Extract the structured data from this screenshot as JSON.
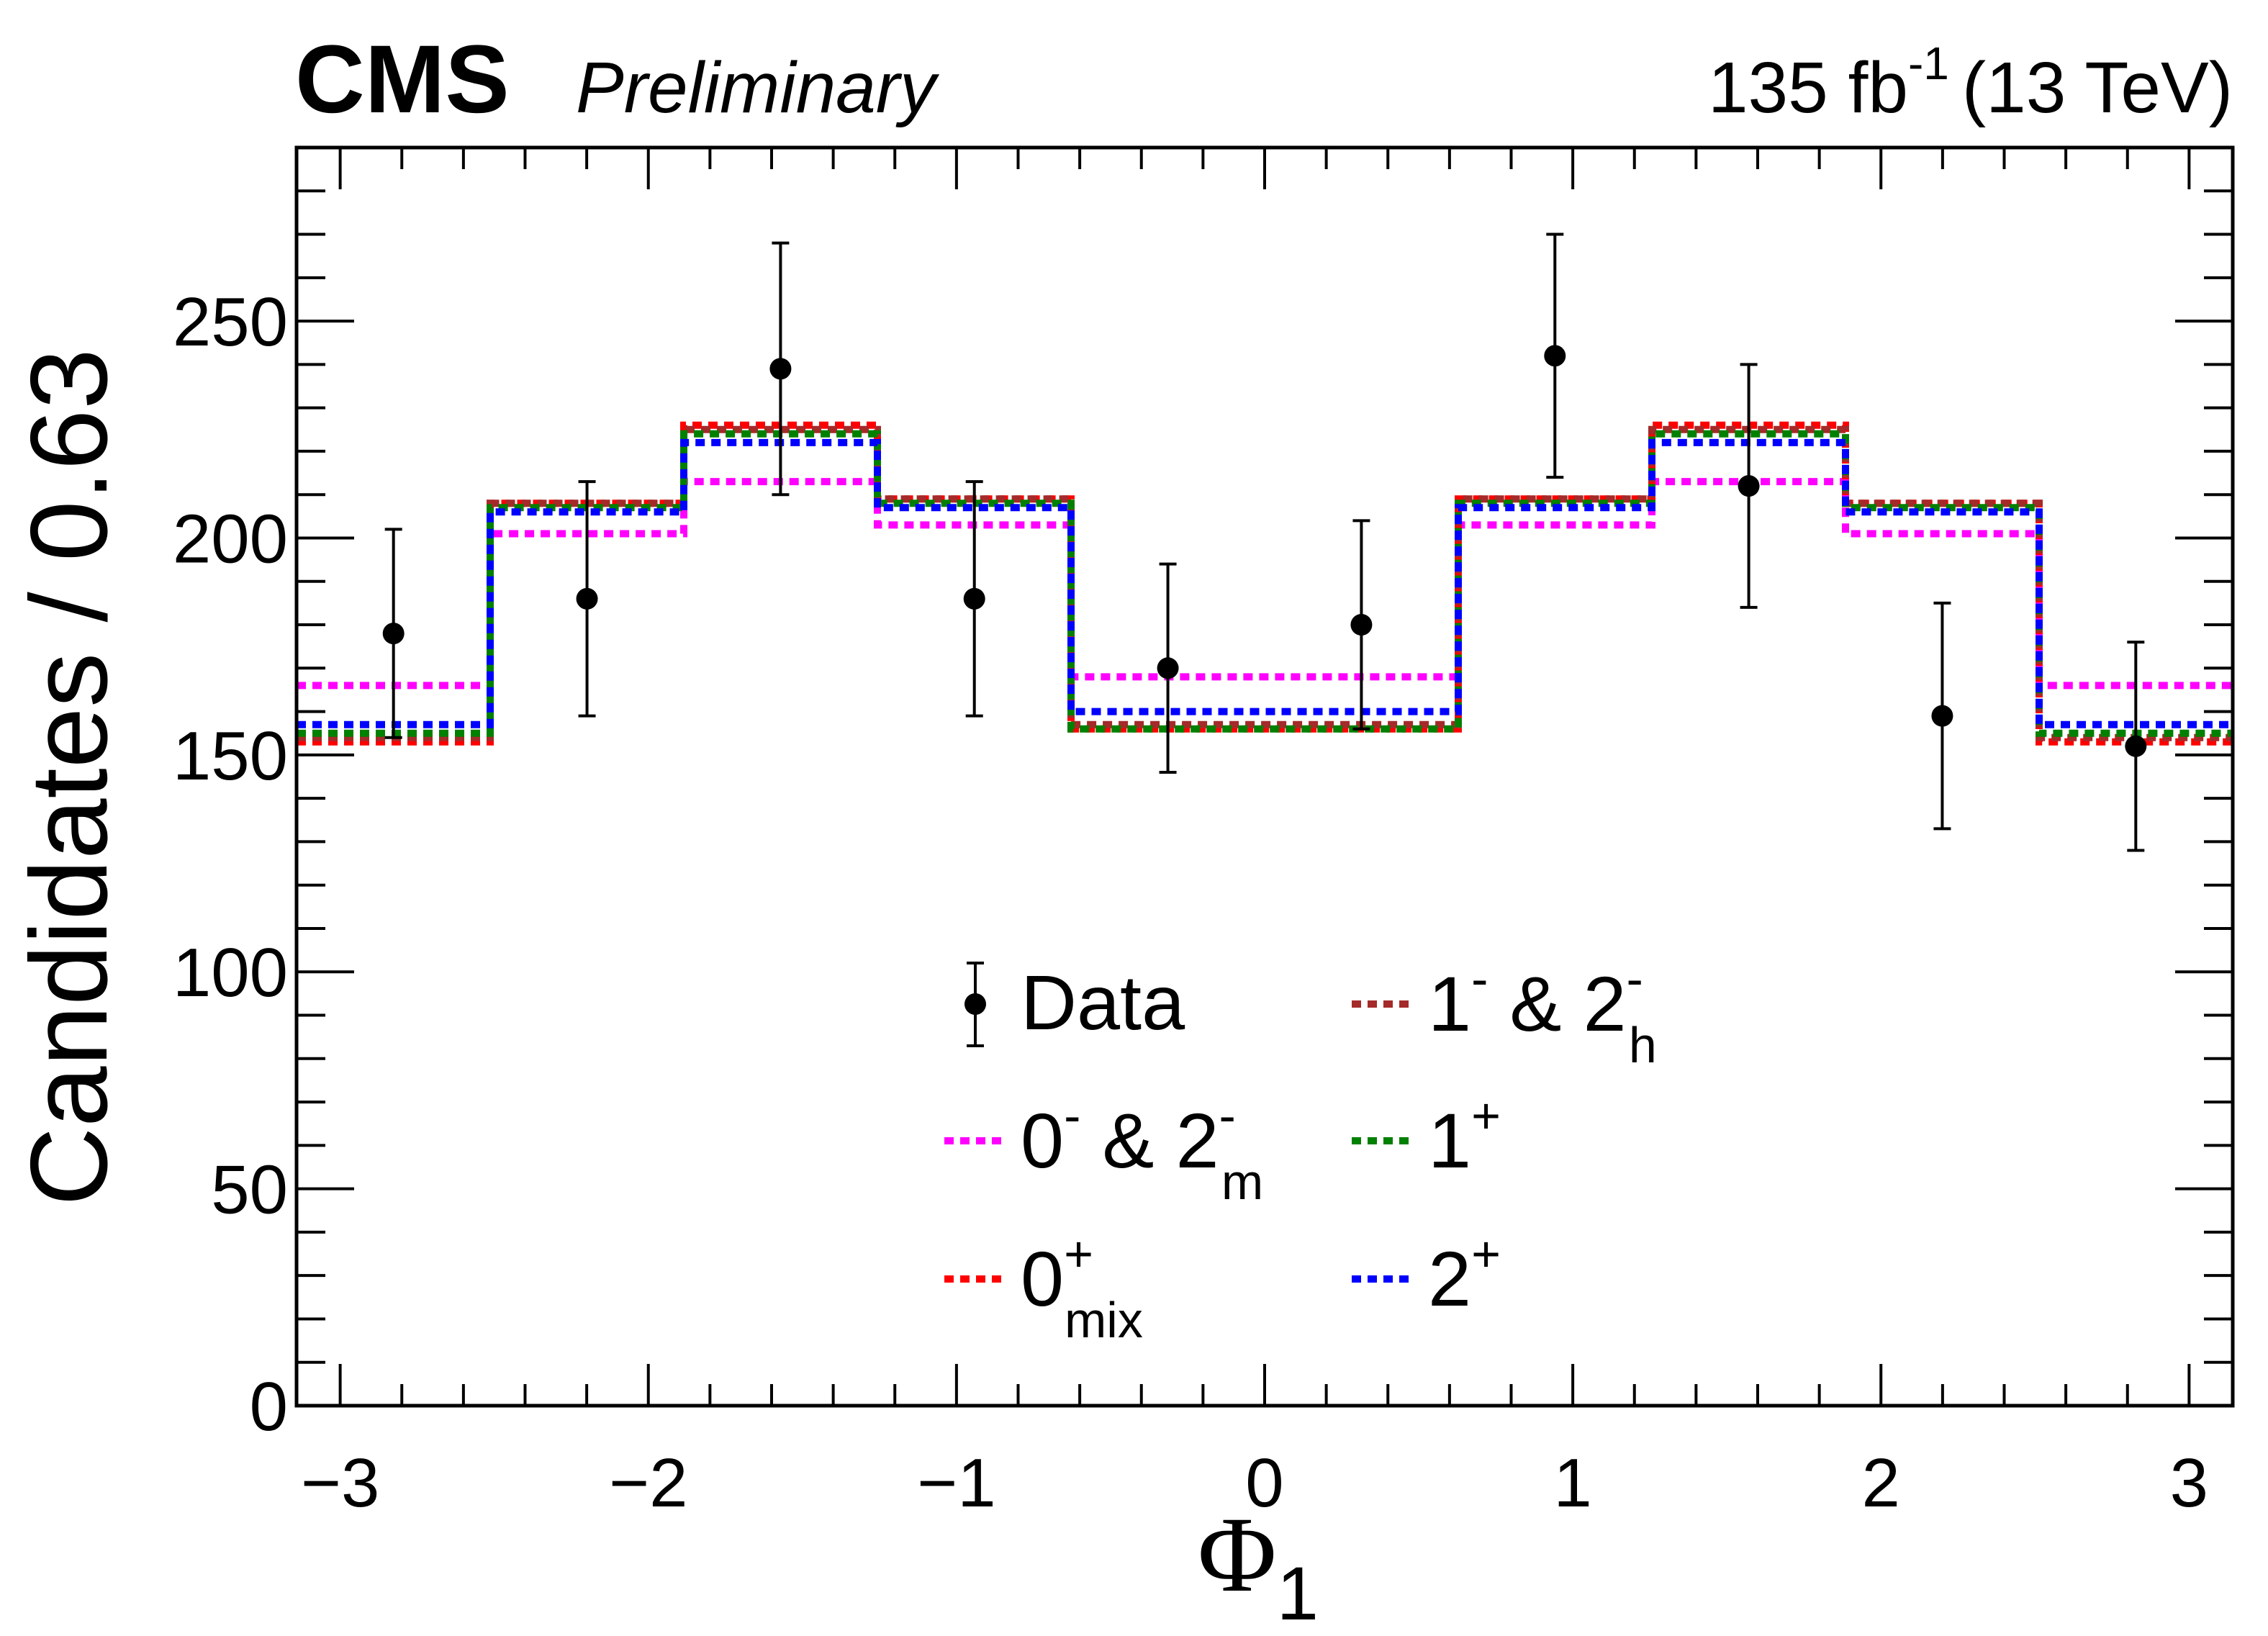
{
  "header": {
    "experiment": "CMS",
    "status": "Preliminary",
    "lumi_value": "135 fb",
    "lumi_exp": "-1",
    "energy": "(13 TeV)"
  },
  "chart_data": {
    "type": "histogram",
    "xlabel": "Φ",
    "xlabel_sub": "1",
    "ylabel": "Candidates / 0.63",
    "xlim": [
      -3.1416,
      3.1416
    ],
    "ylim": [
      0,
      290
    ],
    "bin_edges": [
      -3.1416,
      -2.5133,
      -1.885,
      -1.2566,
      -0.6283,
      0.0,
      0.6283,
      1.2566,
      1.885,
      2.5133,
      3.1416
    ],
    "x_ticks": [
      -3,
      -2,
      -1,
      0,
      1,
      2,
      3
    ],
    "x_tick_labels": [
      "−3",
      "−2",
      "−1",
      "0",
      "1",
      "2",
      "3"
    ],
    "y_ticks": [
      0,
      50,
      100,
      150,
      200,
      250
    ],
    "y_tick_labels": [
      "0",
      "50",
      "100",
      "150",
      "200",
      "250"
    ],
    "data": {
      "name": "Data",
      "x": [
        -2.827,
        -2.199,
        -1.571,
        -0.942,
        -0.314,
        0.314,
        0.942,
        1.571,
        2.199,
        2.827
      ],
      "y": [
        178,
        186,
        239,
        186,
        170,
        180,
        242,
        212,
        159,
        152
      ],
      "err": [
        24,
        27,
        29,
        27,
        24,
        24,
        28,
        28,
        26,
        24
      ]
    },
    "series": [
      {
        "name": "0- & 2m",
        "label_main": "0",
        "sup": "-",
        "mid": " & 2",
        "sup2": "-",
        "sub2": "m",
        "color": "#ff00ff",
        "values": [
          166,
          201,
          213,
          203,
          168,
          168,
          203,
          213,
          201,
          166
        ]
      },
      {
        "name": "0+mix",
        "label_main": "0",
        "sup": "+",
        "sub": "mix",
        "color": "#ff0000",
        "values": [
          153,
          208,
          226,
          209,
          156,
          156,
          209,
          226,
          208,
          153
        ]
      },
      {
        "name": "1- & 2h",
        "label_main": "1",
        "sup": "-",
        "mid": " & 2",
        "sup2": "-",
        "sub2": "h",
        "color": "#a52a2a",
        "values": [
          154,
          208,
          225,
          209,
          157,
          157,
          209,
          225,
          208,
          154
        ]
      },
      {
        "name": "1+",
        "label_main": "1",
        "sup": "+",
        "color": "#008000",
        "values": [
          155,
          207,
          224,
          208,
          156,
          156,
          208,
          224,
          207,
          155
        ]
      },
      {
        "name": "2+",
        "label_main": "2",
        "sup": "+",
        "color": "#0000ff",
        "values": [
          157,
          206,
          222,
          207,
          160,
          160,
          207,
          222,
          206,
          157
        ]
      }
    ],
    "legend": {
      "placement": "lower-center",
      "entries": [
        "Data",
        "0- & 2m",
        "0+mix",
        "1- & 2h",
        "1+",
        "2+"
      ]
    }
  }
}
